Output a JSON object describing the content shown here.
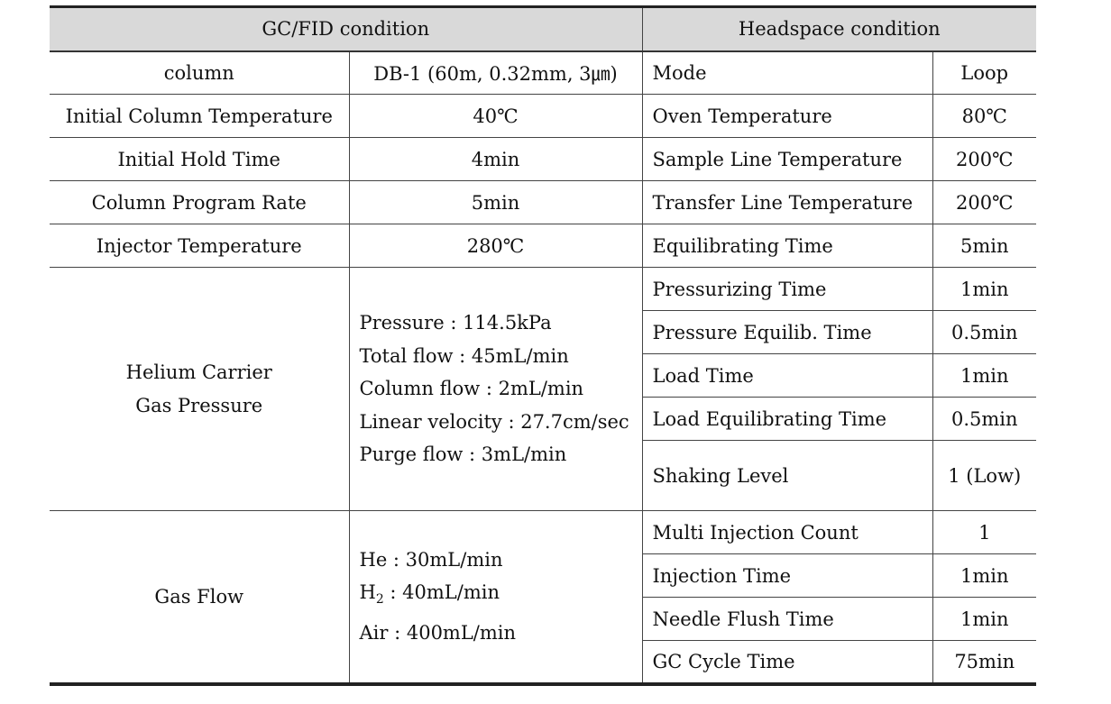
{
  "headers": {
    "gc": "GC/FID condition",
    "hs": "Headspace condition"
  },
  "simple_rows": [
    {
      "gc_label": "column",
      "gc_value": "DB-1 (60m, 0.32mm, 3㎛)",
      "hs_label": "Mode",
      "hs_value": "Loop"
    },
    {
      "gc_label": "Initial Column Temperature",
      "gc_value": "40℃",
      "hs_label": "Oven Temperature",
      "hs_value": "80℃"
    },
    {
      "gc_label": "Initial Hold Time",
      "gc_value": "4min",
      "hs_label": "Sample Line Temperature",
      "hs_value": "200℃"
    },
    {
      "gc_label": "Column Program Rate",
      "gc_value": "5min",
      "hs_label": "Transfer Line Temperature",
      "hs_value": "200℃"
    },
    {
      "gc_label": "Injector Temperature",
      "gc_value": "280℃",
      "hs_label": "Equilibrating Time",
      "hs_value": "5min"
    }
  ],
  "helium_group": {
    "label_lines": [
      "Helium Carrier",
      "Gas Pressure"
    ],
    "value_lines": [
      "Pressure : 114.5kPa",
      "Total flow : 45mL/min",
      "Column flow : 2mL/min",
      "Linear velocity : 27.7cm/sec",
      "Purge flow : 3mL/min"
    ],
    "hs_rows": [
      {
        "label": "Pressurizing Time",
        "value": "1min"
      },
      {
        "label": "Pressure Equilib. Time",
        "value": "0.5min"
      },
      {
        "label": "Load Time",
        "value": "1min"
      },
      {
        "label": "Load Equilibrating Time",
        "value": "0.5min"
      },
      {
        "label": "Shaking Level",
        "value": "1 (Low)"
      }
    ]
  },
  "gasflow_group": {
    "label": "Gas Flow",
    "he": "He : 30mL/min",
    "h2_prefix": "H",
    "h2_sub": "2",
    "h2_rest": " : 40mL/min",
    "air": "Air : 400mL/min",
    "hs_rows": [
      {
        "label": "Multi Injection Count",
        "value": "1"
      },
      {
        "label": "Injection Time",
        "value": "1min"
      },
      {
        "label": "Needle Flush Time",
        "value": "1min"
      },
      {
        "label": "GC Cycle Time",
        "value": "75min"
      }
    ]
  }
}
